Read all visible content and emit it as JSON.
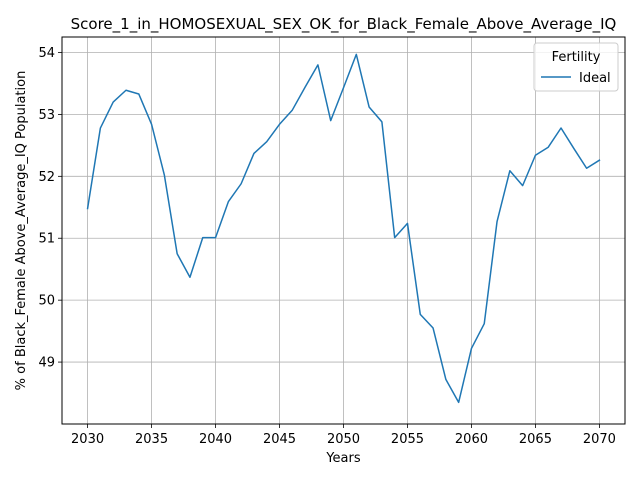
{
  "chart_data": {
    "type": "line",
    "title": "Score_1_in_HOMOSEXUAL_SEX_OK_for_Black_Female_Above_Average_IQ",
    "xlabel": "Years",
    "ylabel": "% of Black_Female Above_Average_IQ Population",
    "xlim": [
      2028,
      2072
    ],
    "ylim": [
      48.0,
      54.25
    ],
    "x_ticks": [
      2030,
      2035,
      2040,
      2045,
      2050,
      2055,
      2060,
      2065,
      2070
    ],
    "y_ticks": [
      49,
      50,
      51,
      52,
      53,
      54
    ],
    "grid": true,
    "legend": {
      "title": "Fertility",
      "placement": "top-right"
    },
    "series": [
      {
        "name": "Ideal",
        "color": "#1f77b4",
        "x": [
          2030,
          2031,
          2032,
          2033,
          2034,
          2035,
          2036,
          2037,
          2038,
          2039,
          2040,
          2041,
          2042,
          2043,
          2044,
          2045,
          2046,
          2047,
          2048,
          2049,
          2050,
          2051,
          2052,
          2053,
          2054,
          2055,
          2056,
          2057,
          2058,
          2059,
          2060,
          2061,
          2062,
          2063,
          2064,
          2065,
          2066,
          2067,
          2068,
          2069,
          2070
        ],
        "y": [
          51.48,
          52.78,
          53.2,
          53.39,
          53.33,
          52.84,
          52.02,
          50.75,
          50.37,
          51.01,
          51.01,
          51.59,
          51.88,
          52.37,
          52.56,
          52.84,
          53.07,
          53.44,
          53.8,
          52.9,
          53.43,
          53.97,
          53.12,
          52.88,
          51.01,
          51.24,
          49.77,
          49.55,
          48.72,
          48.35,
          49.22,
          49.62,
          51.27,
          52.09,
          51.85,
          52.34,
          52.47,
          52.78,
          52.45,
          52.13,
          52.26
        ]
      }
    ]
  }
}
